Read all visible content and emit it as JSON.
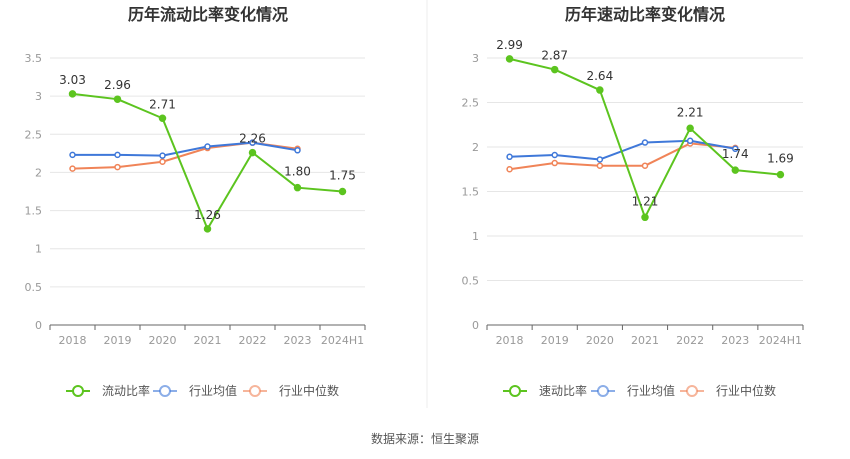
{
  "chart_data": [
    {
      "type": "line",
      "title": "历年流动比率变化情况",
      "categories": [
        "2018",
        "2019",
        "2020",
        "2021",
        "2022",
        "2023",
        "2024H1"
      ],
      "ylim": [
        0,
        3.5
      ],
      "yticks": [
        "0",
        "0.5",
        "1",
        "1.5",
        "2",
        "2.5",
        "3",
        "3.5"
      ],
      "grid": true,
      "legend_position": "bottom",
      "series": [
        {
          "name": "流动比率",
          "color": "#5cc41f",
          "values": [
            3.03,
            2.96,
            2.71,
            1.26,
            2.26,
            1.8,
            1.75
          ],
          "labels": [
            "3.03",
            "2.96",
            "2.71",
            "1.26",
            "2.26",
            "1.80",
            "1.75"
          ]
        },
        {
          "name": "行业均值",
          "color": "#3f78d9",
          "values": [
            2.23,
            2.23,
            2.22,
            2.34,
            2.39,
            2.29,
            null
          ]
        },
        {
          "name": "行业中位数",
          "color": "#f08458",
          "values": [
            2.05,
            2.07,
            2.14,
            2.32,
            2.39,
            2.31,
            null
          ]
        }
      ]
    },
    {
      "type": "line",
      "title": "历年速动比率变化情况",
      "categories": [
        "2018",
        "2019",
        "2020",
        "2021",
        "2022",
        "2023",
        "2024H1"
      ],
      "ylim": [
        0,
        3
      ],
      "yticks": [
        "0",
        "0.5",
        "1",
        "1.5",
        "2",
        "2.5",
        "3"
      ],
      "grid": true,
      "legend_position": "bottom",
      "series": [
        {
          "name": "速动比率",
          "color": "#5cc41f",
          "values": [
            2.99,
            2.87,
            2.64,
            1.21,
            2.21,
            1.74,
            1.69
          ],
          "labels": [
            "2.99",
            "2.87",
            "2.64",
            "1.21",
            "2.21",
            "1.74",
            "1.69"
          ]
        },
        {
          "name": "行业均值",
          "color": "#3f78d9",
          "values": [
            1.89,
            1.91,
            1.86,
            2.05,
            2.07,
            1.98,
            null
          ]
        },
        {
          "name": "行业中位数",
          "color": "#f08458",
          "values": [
            1.75,
            1.82,
            1.79,
            1.79,
            2.04,
            1.99,
            null
          ]
        }
      ]
    }
  ],
  "footer": {
    "source": "数据来源：恒生聚源"
  },
  "colors": {
    "grid": "#e6e6e6",
    "axis": "#666666",
    "divider": "#eeeeee"
  }
}
